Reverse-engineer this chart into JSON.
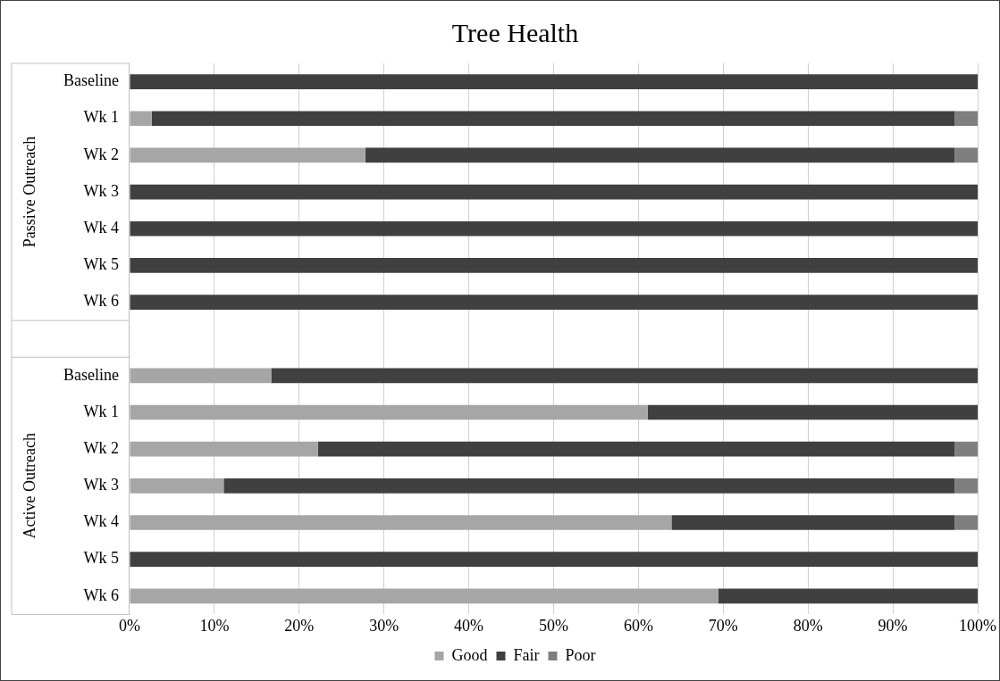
{
  "chart_data": {
    "type": "bar",
    "orientation": "horizontal",
    "stacked": true,
    "title": "Tree Health",
    "categories": [
      "Baseline",
      "Wk 1",
      "Wk 2",
      "Wk 3",
      "Wk 4",
      "Wk 5",
      "Wk 6",
      null,
      "Baseline",
      "Wk 1",
      "Wk 2",
      "Wk 3",
      "Wk 4",
      "Wk 5",
      "Wk 6"
    ],
    "series": [
      {
        "name": "Good",
        "color": "#a6a6a6",
        "values": [
          0,
          2.6,
          27.8,
          0,
          0,
          0,
          0,
          null,
          16.7,
          61.1,
          22.2,
          11.1,
          63.9,
          0,
          69.4
        ]
      },
      {
        "name": "Fair",
        "color": "#404040",
        "values": [
          100,
          94.7,
          69.5,
          100,
          100,
          100,
          100,
          null,
          83.3,
          38.9,
          75.1,
          86.2,
          33.4,
          100,
          30.6
        ]
      },
      {
        "name": "Poor",
        "color": "#7f7f7f",
        "values": [
          0,
          2.7,
          2.7,
          0,
          0,
          0,
          0,
          null,
          0,
          0,
          2.7,
          2.7,
          2.7,
          0,
          0
        ]
      }
    ],
    "xlim": [
      0,
      100
    ],
    "xticks": [
      {
        "value": 0,
        "label": "0%"
      },
      {
        "value": 10,
        "label": "10%"
      },
      {
        "value": 20,
        "label": "20%"
      },
      {
        "value": 30,
        "label": "30%"
      },
      {
        "value": 40,
        "label": "40%"
      },
      {
        "value": 50,
        "label": "50%"
      },
      {
        "value": 60,
        "label": "60%"
      },
      {
        "value": 70,
        "label": "70%"
      },
      {
        "value": 80,
        "label": "80%"
      },
      {
        "value": 90,
        "label": "90%"
      },
      {
        "value": 100,
        "label": "100%"
      }
    ],
    "grid": "x",
    "legend": "bottom",
    "annotations": [
      "Passive Outreach",
      "Active Outreach"
    ]
  }
}
